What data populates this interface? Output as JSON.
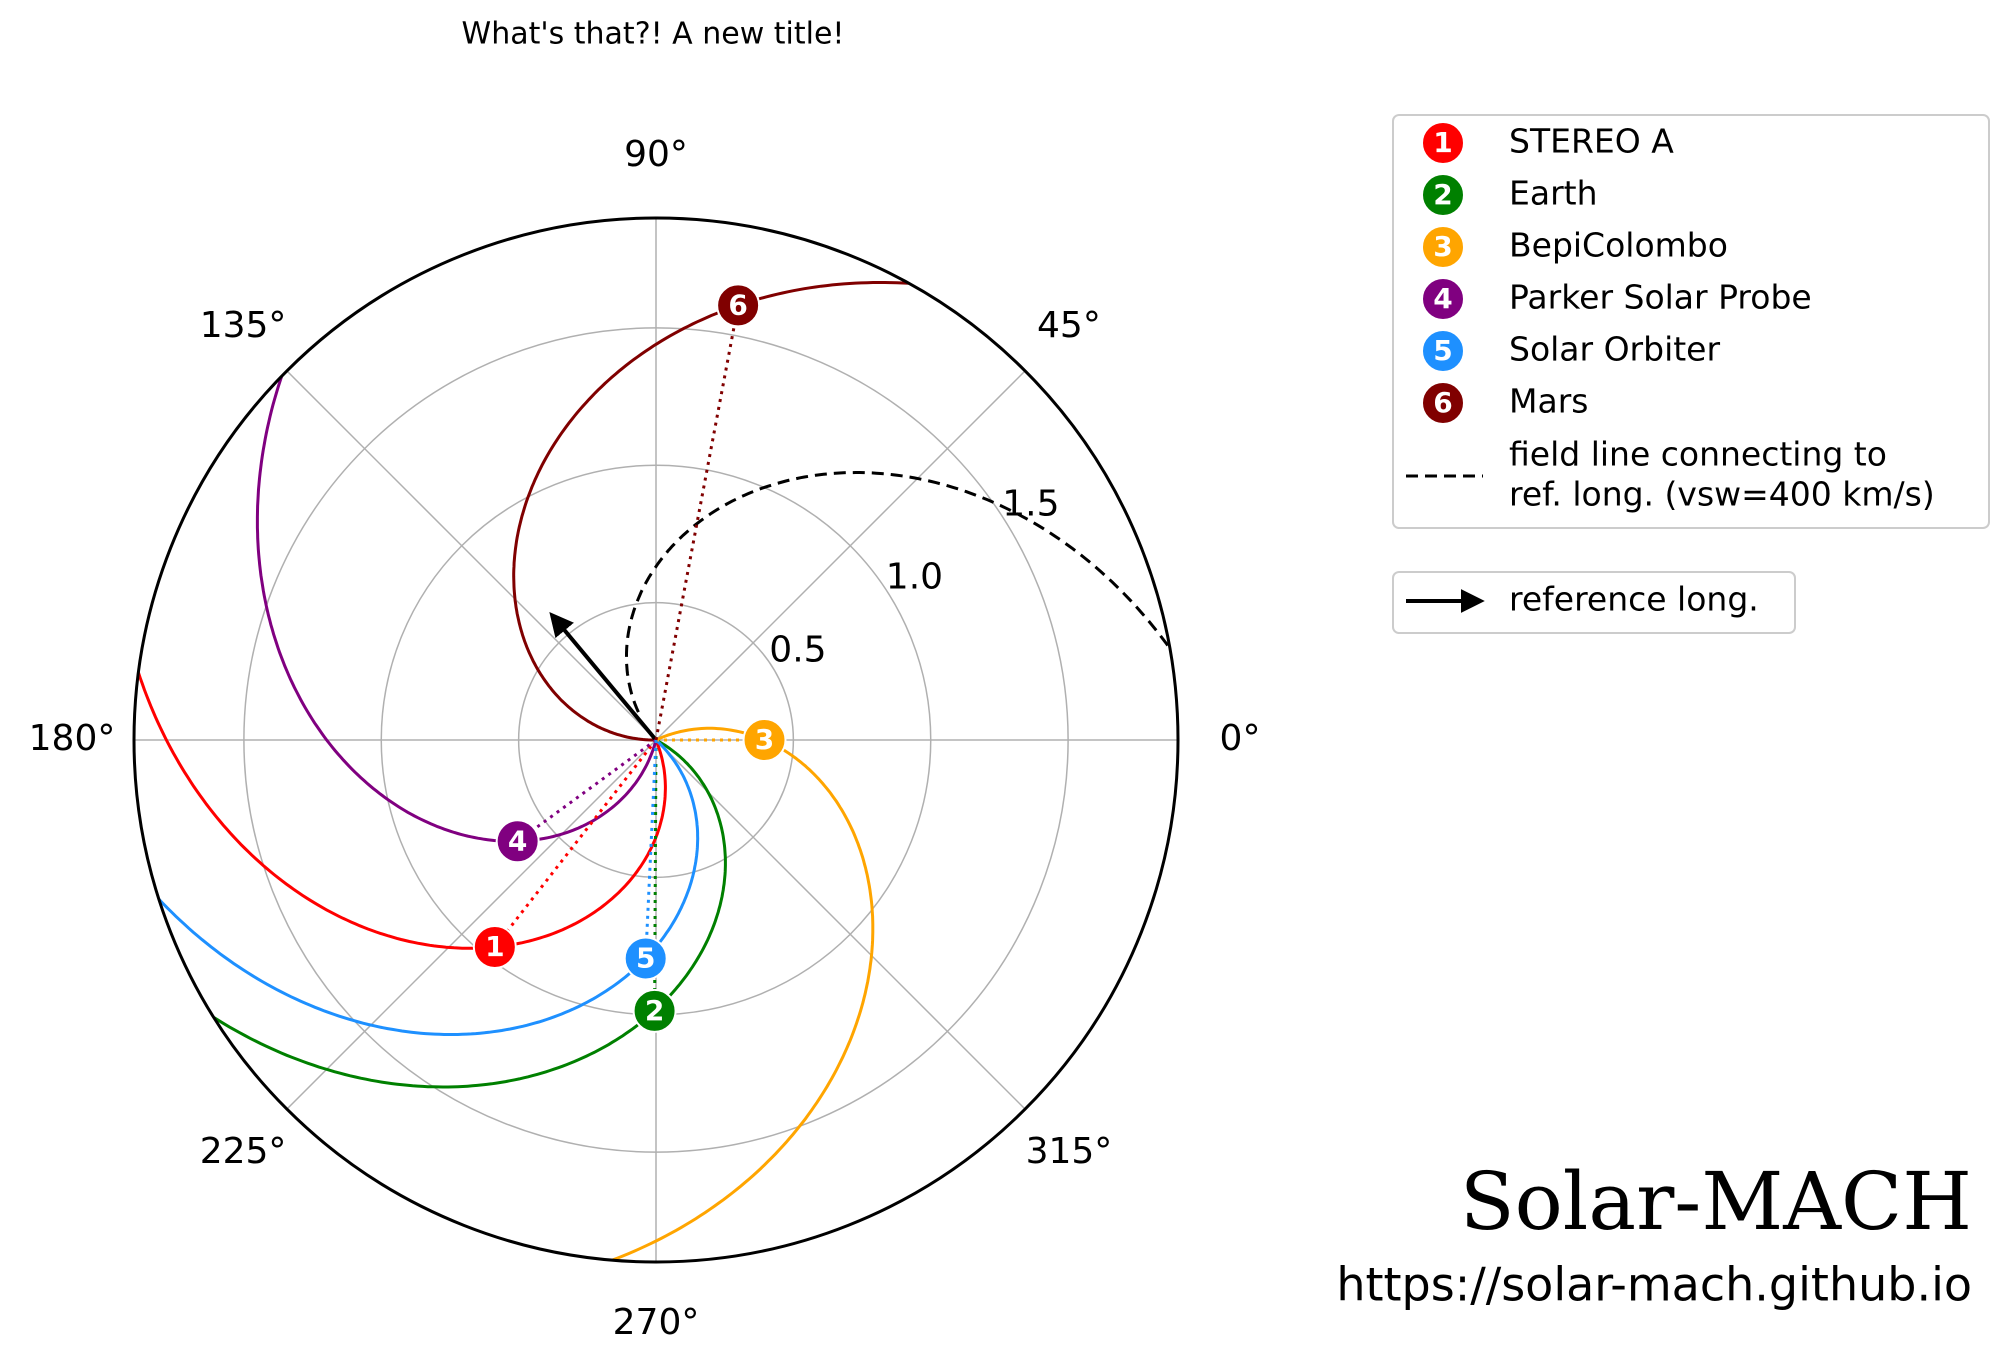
{
  "chart_data": {
    "type": "polar",
    "title": "What's that?! A new title!",
    "rlim": [
      0,
      1.9
    ],
    "rticks": [
      0.5,
      {
        "value": 1,
        "label": "1.0"
      },
      1.5
    ],
    "thetaticks": [
      {
        "value": 0,
        "label": "0°"
      },
      {
        "value": 45,
        "label": "45°"
      },
      {
        "value": 90,
        "label": "90°"
      },
      {
        "value": 135,
        "label": "135°"
      },
      {
        "value": 180,
        "label": "180°"
      },
      {
        "value": 225,
        "label": "225°"
      },
      {
        "value": 270,
        "label": "270°"
      },
      {
        "value": 315,
        "label": "315°"
      }
    ],
    "grid": true,
    "series": [
      {
        "name": "STEREO A",
        "number": "1",
        "color": "#ff0000",
        "r": 0.955,
        "theta": 232.1
      },
      {
        "name": "Earth",
        "number": "2",
        "color": "#008000",
        "r": 0.986,
        "theta": 269.7
      },
      {
        "name": "BepiColombo",
        "number": "3",
        "color": "#ffa500",
        "r": 0.395,
        "theta": 0
      },
      {
        "name": "Parker Solar Probe",
        "number": "4",
        "color": "#800080",
        "r": 0.624,
        "theta": 216.2
      },
      {
        "name": "Solar Orbiter",
        "number": "5",
        "color": "#1e90ff",
        "r": 0.796,
        "theta": 267.3
      },
      {
        "name": "Mars",
        "number": "6",
        "color": "#800000",
        "r": 1.61,
        "theta": 79.3
      }
    ],
    "reference_long": 129.8,
    "field_line_label": [
      "field line connecting to",
      "ref. long. (vsw=400 km/s)"
    ],
    "reference_label": "reference long.",
    "annotations": [
      "Solar-MACH",
      "https://solar-mach.github.io"
    ]
  }
}
